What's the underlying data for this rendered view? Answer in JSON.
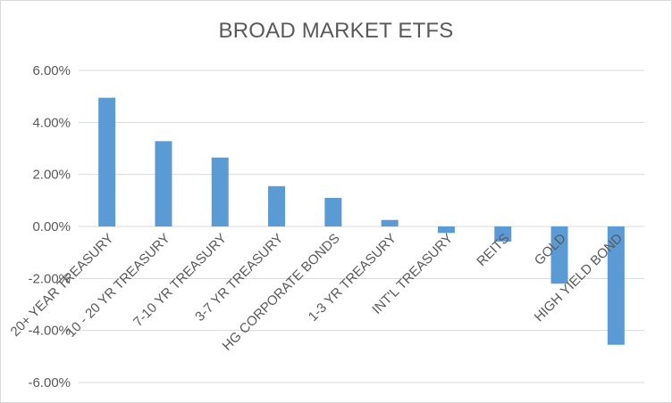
{
  "chart_data": {
    "type": "bar",
    "title": "BROAD MARKET ETFS",
    "xlabel": "",
    "ylabel": "",
    "categories": [
      "20+ YEAR TREASURY",
      "10 - 20 YR TREASURY",
      "7-10 YR TREASURY",
      "3-7 YR TREASURY",
      "HG CORPORATE BONDS",
      "1-3 YR TREASURY",
      "INT'L TREASURY",
      "REITS",
      "GOLD",
      "HIGH YIELD BOND"
    ],
    "values": [
      4.95,
      3.28,
      2.65,
      1.55,
      1.1,
      0.25,
      -0.25,
      -0.58,
      -2.2,
      -4.55
    ],
    "ylim": [
      -6,
      6
    ],
    "yticks": [
      6,
      4,
      2,
      0,
      -2,
      -4,
      -6
    ],
    "ytick_labels": [
      "6.00%",
      "4.00%",
      "2.00%",
      "0.00%",
      "-2.00%",
      "-4.00%",
      "-6.00%"
    ],
    "grid": true,
    "legend": "none",
    "colors": {
      "bar": "#5b9bd5",
      "grid": "#d9d9d9",
      "text": "#595959"
    }
  }
}
